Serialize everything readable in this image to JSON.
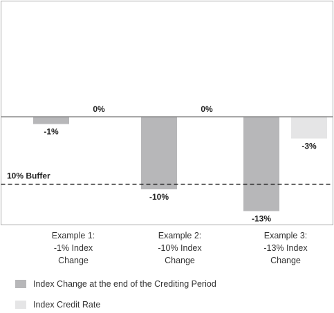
{
  "chart_data": {
    "type": "bar",
    "categories": [
      "Example 1:",
      "Example 2:",
      "Example 3:"
    ],
    "category_lines": [
      [
        "Example 1:",
        "-1% Index",
        "Change"
      ],
      [
        "Example 2:",
        "-10% Index",
        "Change"
      ],
      [
        "Example 3:",
        "-13% Index",
        "Change"
      ]
    ],
    "series": [
      {
        "name": "Index Change at the end of the Crediting Period",
        "values": [
          -1,
          -10,
          -13
        ],
        "labels": [
          "-1%",
          "-10%",
          "-13%"
        ],
        "color": "#b7b7b9"
      },
      {
        "name": "Index Credit Rate",
        "values": [
          0,
          0,
          -3
        ],
        "labels": [
          "0%",
          "0%",
          "-3%"
        ],
        "color": "#e5e5e6"
      }
    ],
    "ylim": [
      -15,
      15
    ],
    "grid": false,
    "legend_position": "bottom-left",
    "reference_line": {
      "label": "10% Buffer",
      "value": -9.3,
      "style": "dashed"
    },
    "colors": {
      "axis": "#8a8a8a",
      "text": "#222222"
    }
  }
}
